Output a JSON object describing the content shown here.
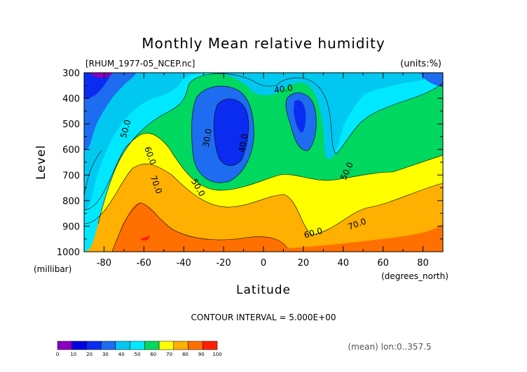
{
  "chart_data": {
    "type": "heatmap",
    "title": "Monthly Mean relative humidity",
    "file_label": "[RHUM_1977-05_NCEP.nc]",
    "units_label": "(units:%)",
    "xlabel": "Latitude",
    "ylabel": "Level",
    "x_unit": "(degrees_north)",
    "y_unit": "(millibar)",
    "x_ticks": [
      "-80",
      "-60",
      "-40",
      "-20",
      "0",
      "20",
      "40",
      "60",
      "80"
    ],
    "y_ticks": [
      "300",
      "400",
      "500",
      "600",
      "700",
      "800",
      "900",
      "1000"
    ],
    "xlim": [
      -90,
      90
    ],
    "ylim": [
      1000,
      300
    ],
    "contour_interval_text": "CONTOUR INTERVAL = 5.000E+00",
    "mean_text": "(mean) lon:0..357.5",
    "contour_labels": [
      {
        "text": "40.0",
        "lat": 10,
        "level": 365,
        "angle": -8
      },
      {
        "text": "30.0",
        "lat": -28,
        "level": 555,
        "angle": -80
      },
      {
        "text": "40.0",
        "lat": -10,
        "level": 575,
        "angle": -80
      },
      {
        "text": "50.0",
        "lat": -69,
        "level": 520,
        "angle": -75
      },
      {
        "text": "60.0",
        "lat": -57,
        "level": 625,
        "angle": 70
      },
      {
        "text": "70.0",
        "lat": -54,
        "level": 738,
        "angle": 70
      },
      {
        "text": "50.0",
        "lat": -33,
        "level": 750,
        "angle": 60
      },
      {
        "text": "50.0",
        "lat": 42,
        "level": 685,
        "angle": -65
      },
      {
        "text": "60.0",
        "lat": 25,
        "level": 928,
        "angle": -15
      },
      {
        "text": "70.0",
        "lat": 47,
        "level": 893,
        "angle": -20
      }
    ],
    "colorbar": {
      "levels": [
        "0",
        "10",
        "20",
        "30",
        "40",
        "50",
        "60",
        "70",
        "80",
        "90",
        "100"
      ],
      "colors": [
        "#8a00c0",
        "#0000e0",
        "#0a2cf0",
        "#1e6cf0",
        "#00c8f0",
        "#00e8ff",
        "#00d860",
        "#ffff00",
        "#ffb000",
        "#ff7000",
        "#ff2000"
      ]
    },
    "fill_colors": {
      "lt20": "#0000e0",
      "20_30": "#1e6cf0",
      "30_40": "#00c8f0",
      "40_50": "#00e8ff",
      "50_60": "#00d860",
      "60_70": "#ffff00",
      "70_80": "#ffb000",
      "80_90": "#ff7000",
      "gt90": "#ff2000",
      "lt10": "#8a00c0"
    }
  }
}
